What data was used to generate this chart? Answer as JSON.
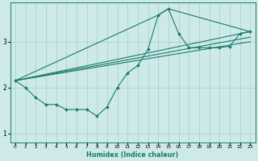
{
  "xlabel": "Humidex (Indice chaleur)",
  "ylabel": "",
  "bg_color": "#ceeae8",
  "grid_color": "#a8d4d0",
  "line_color": "#1a7a6e",
  "marker_color": "#1a7a6e",
  "xlim": [
    -0.5,
    23.5
  ],
  "ylim": [
    0.8,
    3.85
  ],
  "xticks": [
    0,
    1,
    2,
    3,
    4,
    5,
    6,
    7,
    8,
    9,
    10,
    11,
    12,
    13,
    14,
    15,
    16,
    17,
    18,
    19,
    20,
    21,
    22,
    23
  ],
  "yticks": [
    1,
    2,
    3
  ],
  "series0_x": [
    0,
    1,
    2,
    3,
    4,
    5,
    6,
    7,
    8,
    9,
    10,
    11,
    12,
    13,
    14,
    15,
    16,
    17,
    18,
    19,
    20,
    21,
    22,
    23
  ],
  "series0_y": [
    2.15,
    2.0,
    1.78,
    1.63,
    1.63,
    1.52,
    1.52,
    1.52,
    1.38,
    1.58,
    2.0,
    2.32,
    2.48,
    2.83,
    3.58,
    3.72,
    3.18,
    2.87,
    2.87,
    2.87,
    2.87,
    2.9,
    3.18,
    3.22
  ],
  "line1_x": [
    0,
    23
  ],
  "line1_y": [
    2.15,
    3.22
  ],
  "line2_x": [
    0,
    23
  ],
  "line2_y": [
    2.15,
    3.1
  ],
  "line3_x": [
    0,
    23
  ],
  "line3_y": [
    2.15,
    3.0
  ],
  "line4_x": [
    0,
    14,
    15,
    23
  ],
  "line4_y": [
    2.15,
    3.58,
    3.72,
    3.22
  ]
}
